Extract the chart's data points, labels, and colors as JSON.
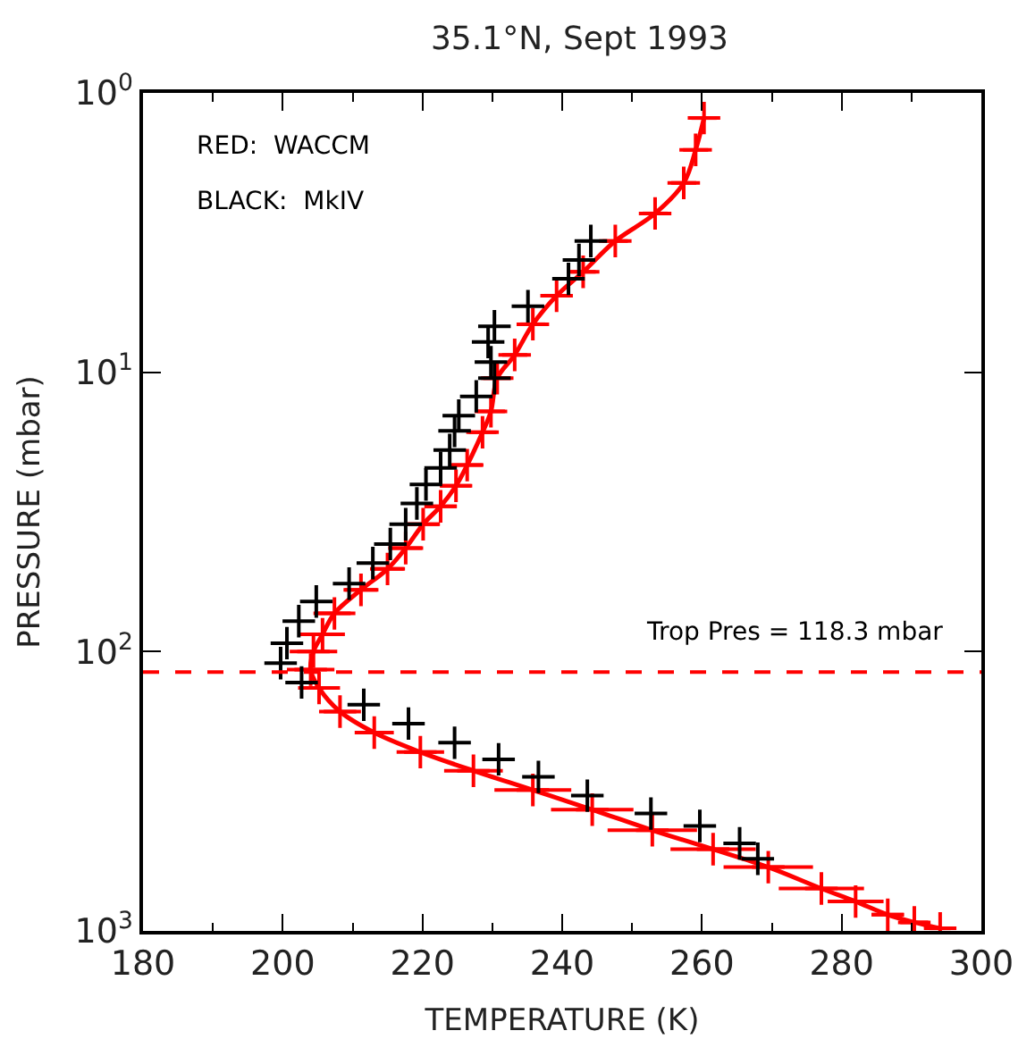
{
  "chart_data": {
    "type": "line",
    "title": "35.1°N, Sept 1993",
    "xlabel": "TEMPERATURE (K)",
    "ylabel": "PRESSURE (mbar)",
    "log": "y",
    "xlim": [
      180,
      300
    ],
    "xticks": [
      180,
      200,
      220,
      240,
      260,
      280,
      300
    ],
    "ylim": [
      1000,
      1
    ],
    "yticks": [
      {
        "value": 1,
        "label": "10$^{0}$"
      },
      {
        "value": 10,
        "label": "10$^{1}$"
      },
      {
        "value": 100,
        "label": "10$^{2}$"
      },
      {
        "value": 1000,
        "label": "10$^{3}$"
      }
    ],
    "series": [
      {
        "type": "line",
        "color": "#ff0000",
        "marker": "cross",
        "line_style": "solid",
        "x": [
          260.3,
          259.1,
          257.4,
          253.3,
          247.6,
          243.0,
          239.2,
          235.8,
          233.2,
          230.7,
          229.8,
          228.6,
          226.4,
          224.8,
          222.6,
          220.1,
          217.6,
          215.0,
          211.2,
          207.4,
          205.7,
          204.4,
          204.0,
          205.2,
          208.2,
          213.1,
          219.7,
          227.3,
          235.8,
          244.3,
          252.9,
          261.6,
          269.5,
          277.1,
          282.0,
          286.6,
          290.4,
          294.1
        ],
        "values": [
          1.23,
          1.6,
          2.1,
          2.7,
          3.39,
          4.37,
          5.32,
          6.73,
          8.67,
          10.5,
          13.8,
          16.4,
          21.5,
          25.5,
          30.2,
          35.0,
          42.6,
          50.6,
          60.1,
          73.0,
          86.7,
          100,
          116,
          135,
          164,
          195,
          229,
          267,
          313,
          368,
          436,
          510,
          591,
          705,
          785,
          875,
          932,
          979
        ],
        "xerrors": [
          1.8,
          1.8,
          1.8,
          1.8,
          1.8,
          1.8,
          1.8,
          1.8,
          1.8,
          2,
          2,
          2,
          2.2,
          2.2,
          2.3,
          2.4,
          2.5,
          2.5,
          2.5,
          3,
          3.2,
          3.4,
          3.4,
          3,
          3,
          2.8,
          3.4,
          4.2,
          5.5,
          5.9,
          6.4,
          6.1,
          6.4,
          6.1,
          4,
          2.3,
          2,
          1.5
        ]
      },
      {
        "type": "scatter",
        "color": "#000000",
        "marker": "cross",
        "x": [
          244.1,
          242.4,
          240.9,
          235.1,
          230.3,
          229.4,
          229.8,
          230.3,
          227.7,
          225.2,
          224.6,
          223.9,
          222.6,
          220.5,
          219.2,
          217.6,
          215.4,
          212.9,
          209.5,
          204.8,
          202.3,
          200.6,
          199.7,
          202.7,
          211.6,
          218.0,
          224.6,
          230.9,
          236.6,
          243.6,
          252.7,
          259.7,
          265.4,
          268.0
        ],
        "values": [
          3.39,
          3.96,
          4.63,
          5.8,
          6.85,
          7.79,
          9.2,
          10.5,
          12.2,
          14.3,
          16.2,
          19.0,
          22.0,
          25.2,
          29.5,
          35.0,
          41.2,
          48.2,
          57.1,
          66.2,
          77.8,
          93.3,
          110,
          129,
          155,
          181,
          212,
          243,
          281,
          328,
          380,
          421,
          486,
          552
        ]
      }
    ],
    "ref_lines": [
      {
        "axis": "y",
        "value": 118.3,
        "label": "Trop Pres = 118.3 mbar",
        "color": "#ff0000",
        "line_style": "dashed"
      }
    ],
    "annotations": [
      "RED:  WACCM",
      "BLACK:  MkIV"
    ]
  }
}
